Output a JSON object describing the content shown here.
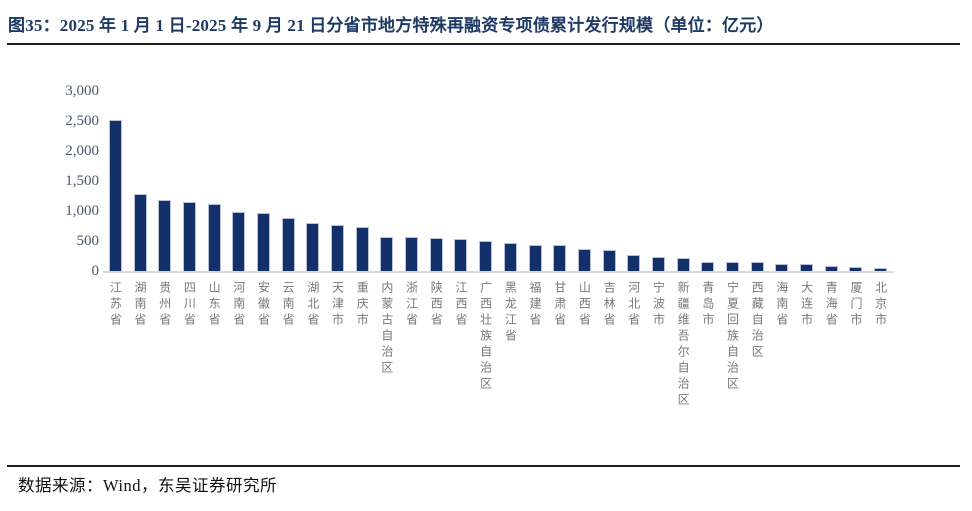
{
  "header": {
    "title": "图35：2025 年 1 月 1 日-2025 年 9 月 21 日分省市地方特殊再融资专项债累计发行规模（单位：亿元）"
  },
  "footer": {
    "source": "数据来源：Wind，东吴证券研究所"
  },
  "colors": {
    "bar_fill": "#14306b",
    "bar_border": "#b7c2d8",
    "title_text": "#1e3a64",
    "y_axis_text": "#4d5769",
    "x_axis_text": "#787878",
    "baseline": "#d9d9d9",
    "divider": "#1c1c1c"
  },
  "chart_data": {
    "type": "bar",
    "title": "2025 年 1 月 1 日-2025 年 9 月 21 日分省市地方特殊再融资专项债累计发行规模",
    "unit": "亿元",
    "xlabel": "",
    "ylabel": "",
    "ylim": [
      0,
      3000
    ],
    "grid": false,
    "legend": "none",
    "yticks": [
      0,
      500,
      1000,
      1500,
      2000,
      2500,
      3000
    ],
    "ytick_labels": [
      "0",
      "500",
      "1,000",
      "1,500",
      "2,000",
      "2,500",
      "3,000"
    ],
    "categories": [
      "江苏省",
      "湖南省",
      "贵州省",
      "四川省",
      "山东省",
      "河南省",
      "安徽省",
      "云南省",
      "湖北省",
      "天津市",
      "重庆市",
      "内蒙古自治区",
      "浙江省",
      "陕西省",
      "江西省",
      "广西壮族自治区",
      "黑龙江省",
      "福建省",
      "甘肃省",
      "山西省",
      "吉林省",
      "河北省",
      "宁波市",
      "新疆维吾尔自治区",
      "青岛市",
      "宁夏回族自治区",
      "西藏自治区",
      "海南省",
      "大连市",
      "青海省",
      "厦门市",
      "北京市"
    ],
    "values": [
      2511,
      1288,
      1176,
      1148,
      1115,
      990,
      968,
      877,
      799,
      765,
      741,
      572,
      566,
      556,
      540,
      500,
      463,
      434,
      428,
      374,
      350,
      268,
      235,
      211,
      151,
      150,
      146,
      116,
      111,
      84,
      62,
      53
    ]
  }
}
